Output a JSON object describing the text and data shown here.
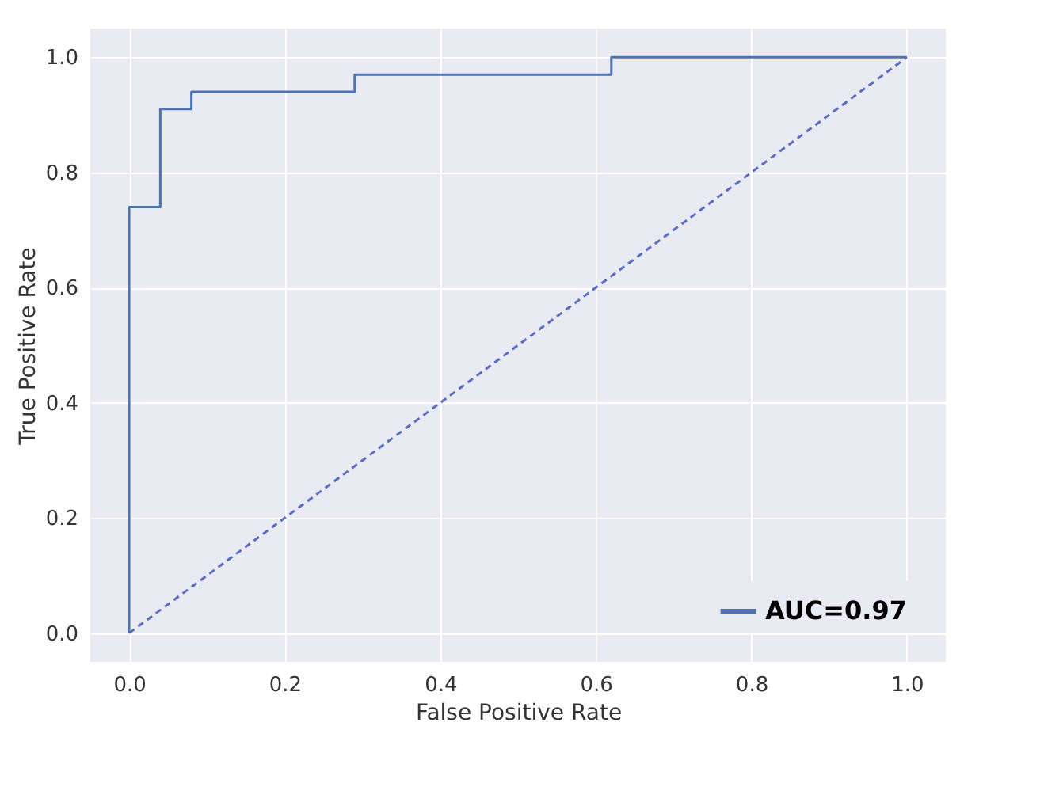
{
  "chart_data": {
    "type": "line",
    "xlabel": "False Positive Rate",
    "ylabel": "True Positive Rate",
    "xlim": [
      -0.05,
      1.05
    ],
    "ylim": [
      -0.05,
      1.05
    ],
    "xticks": [
      {
        "value": 0,
        "label": "0.0"
      },
      0.2,
      0.4,
      0.6,
      0.8,
      {
        "value": 1,
        "label": "1.0"
      }
    ],
    "yticks": [
      {
        "value": 0,
        "label": "0.0"
      },
      0.2,
      0.4,
      0.6,
      0.8,
      {
        "value": 1,
        "label": "1.0"
      }
    ],
    "grid": true,
    "legend": "bottom right",
    "series": [
      {
        "name": "AUC=0.97",
        "type": "step",
        "color": "#4c72b0",
        "line_style": "solid",
        "x": [
          0,
          0,
          0.04,
          0.08,
          0.29,
          0.62,
          1
        ],
        "values": [
          0,
          0.74,
          0.91,
          0.94,
          0.97,
          1,
          1
        ]
      },
      {
        "type": "line",
        "color": "#5a6cc4",
        "line_style": "dashed",
        "x": [
          0,
          1
        ],
        "values": [
          0,
          1
        ]
      }
    ]
  }
}
